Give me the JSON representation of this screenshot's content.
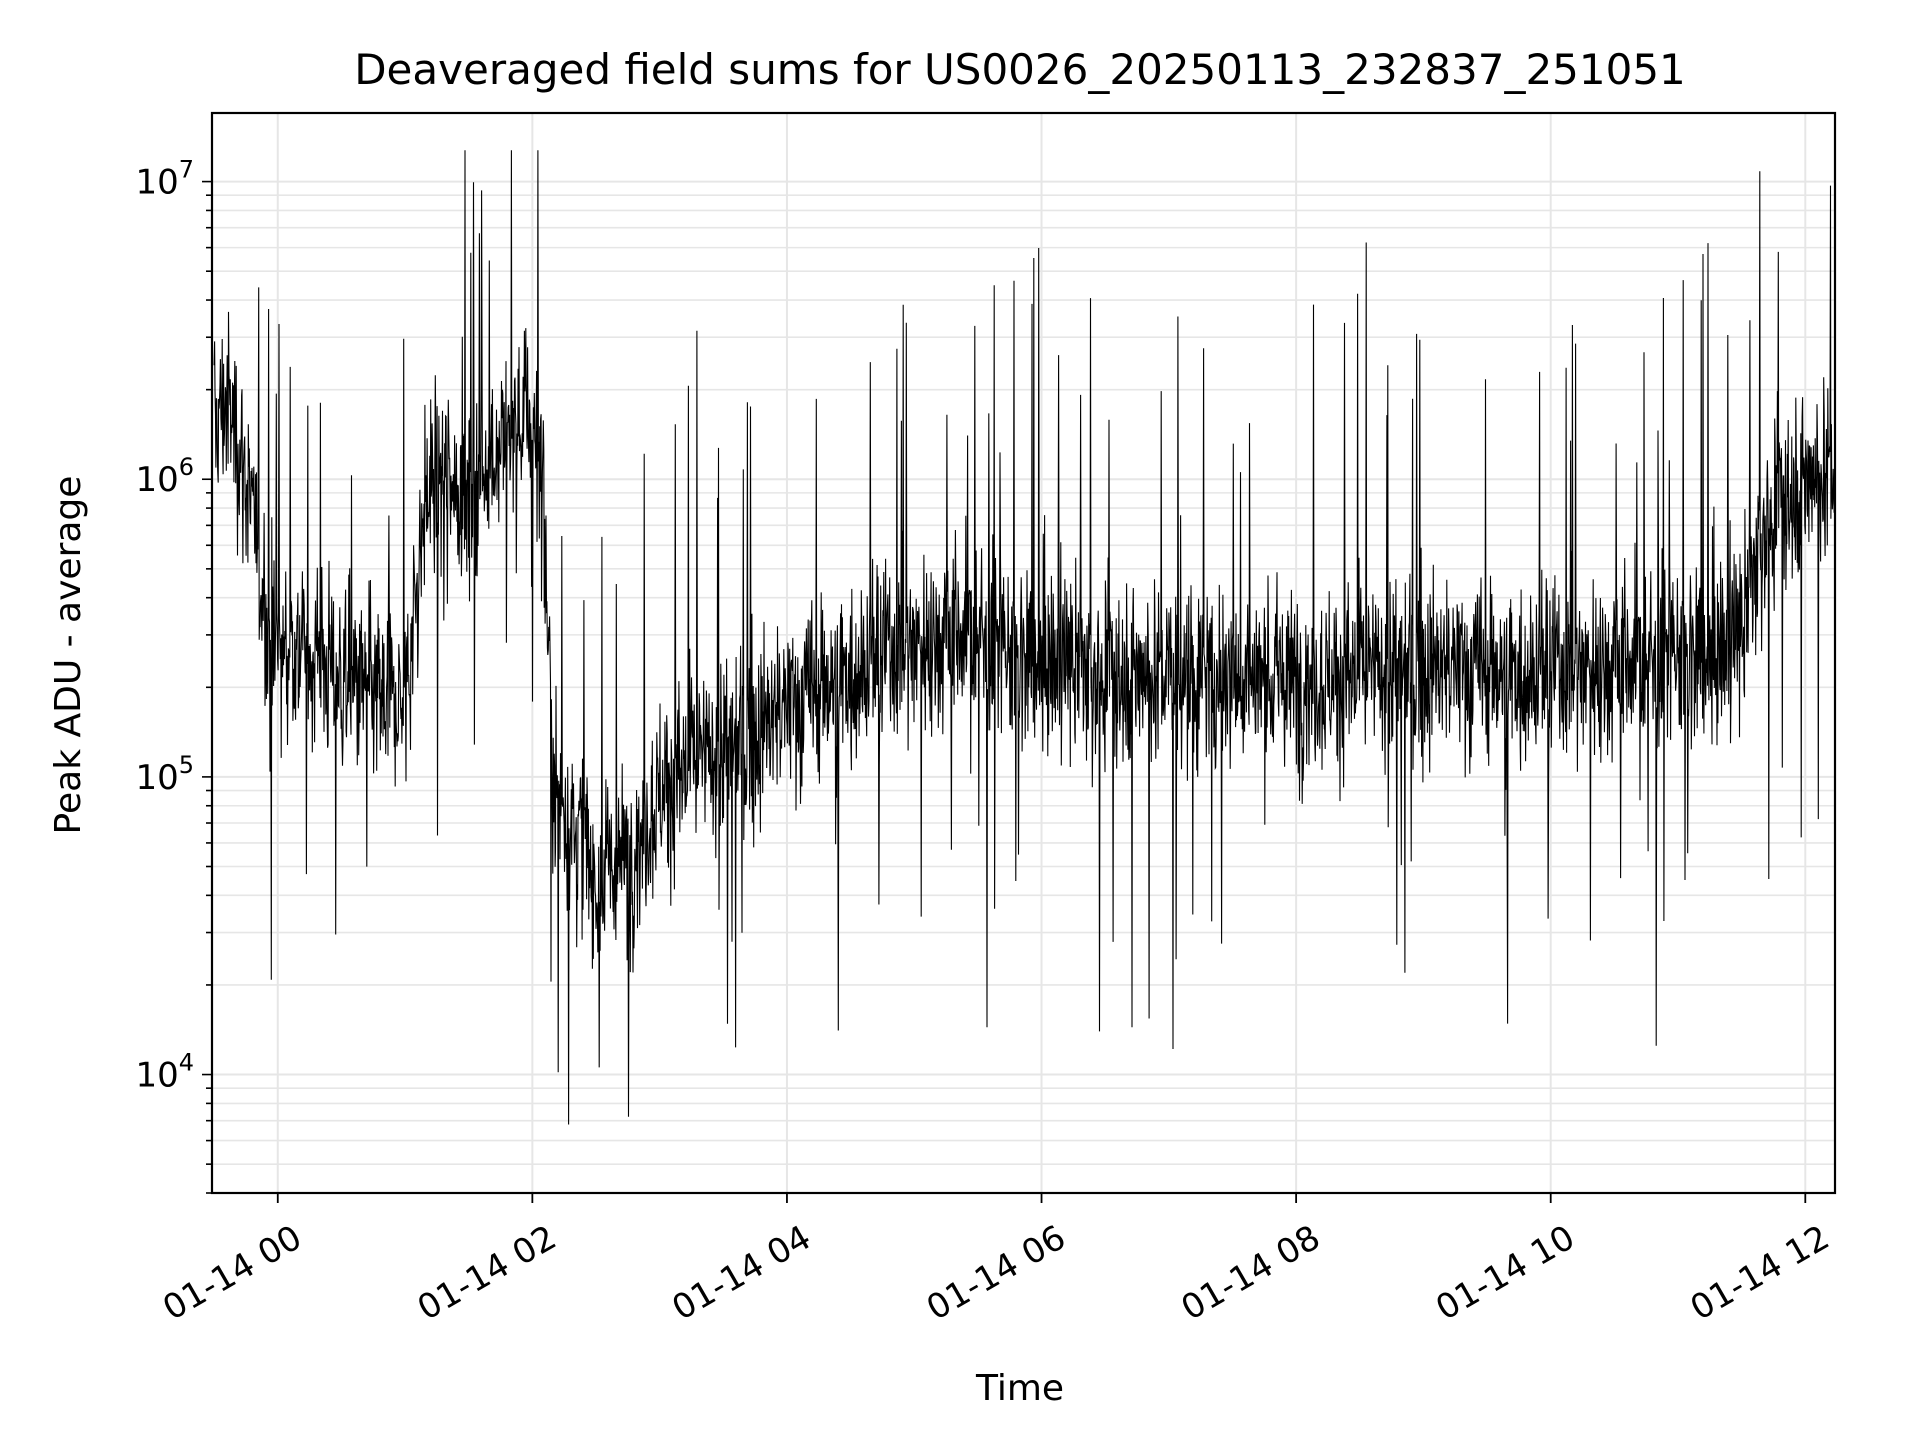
{
  "chart_data": {
    "type": "line",
    "title": "Deaveraged field sums for US0026_20250113_232837_251051",
    "xlabel": "Time",
    "ylabel": "Peak ADU - average",
    "yscale": "log",
    "ylim": [
      4000,
      17000000
    ],
    "xlim": [
      "2025-01-13 23:29",
      "2025-01-14 12:14"
    ],
    "grid": true,
    "line_color": "#000000",
    "x_ticks": [
      {
        "t": "2025-01-14 00:00",
        "label": "01-14 00"
      },
      {
        "t": "2025-01-14 02:00",
        "label": "01-14 02"
      },
      {
        "t": "2025-01-14 04:00",
        "label": "01-14 04"
      },
      {
        "t": "2025-01-14 06:00",
        "label": "01-14 06"
      },
      {
        "t": "2025-01-14 08:00",
        "label": "01-14 08"
      },
      {
        "t": "2025-01-14 10:00",
        "label": "01-14 10"
      },
      {
        "t": "2025-01-14 12:00",
        "label": "01-14 12"
      }
    ],
    "y_ticks": [
      {
        "v": 10000,
        "base": "10",
        "exp": "4"
      },
      {
        "v": 100000,
        "base": "10",
        "exp": "5"
      },
      {
        "v": 1000000,
        "base": "10",
        "exp": "6"
      },
      {
        "v": 10000000,
        "base": "10",
        "exp": "7"
      }
    ],
    "series": [
      {
        "x": [
          "2025-01-13 23:30",
          "2025-01-13 23:35",
          "2025-01-13 23:40",
          "2025-01-13 23:45",
          "2025-01-13 23:50",
          "2025-01-13 23:55",
          "2025-01-14 00:00",
          "2025-01-14 00:10",
          "2025-01-14 00:20",
          "2025-01-14 00:30",
          "2025-01-14 00:40",
          "2025-01-14 00:50",
          "2025-01-14 01:00",
          "2025-01-14 01:10",
          "2025-01-14 01:20",
          "2025-01-14 01:30",
          "2025-01-14 01:40",
          "2025-01-14 01:50",
          "2025-01-14 02:00",
          "2025-01-14 02:05",
          "2025-01-14 02:10",
          "2025-01-14 02:20",
          "2025-01-14 02:30",
          "2025-01-14 02:40",
          "2025-01-14 02:50",
          "2025-01-14 03:00",
          "2025-01-14 03:15",
          "2025-01-14 03:30",
          "2025-01-14 03:45",
          "2025-01-14 04:00",
          "2025-01-14 04:15",
          "2025-01-14 04:30",
          "2025-01-14 04:45",
          "2025-01-14 05:00",
          "2025-01-14 05:15",
          "2025-01-14 05:30",
          "2025-01-14 05:45",
          "2025-01-14 06:00",
          "2025-01-14 06:30",
          "2025-01-14 07:00",
          "2025-01-14 07:30",
          "2025-01-14 08:00",
          "2025-01-14 08:30",
          "2025-01-14 09:00",
          "2025-01-14 09:30",
          "2025-01-14 10:00",
          "2025-01-14 10:30",
          "2025-01-14 11:00",
          "2025-01-14 11:15",
          "2025-01-14 11:30",
          "2025-01-14 11:40",
          "2025-01-14 11:50",
          "2025-01-14 12:00",
          "2025-01-14 12:14"
        ],
        "y": [
          1500000,
          1800000,
          1500000,
          1000000,
          600000,
          300000,
          250000,
          280000,
          260000,
          200000,
          200000,
          180000,
          180000,
          900000,
          1100000,
          800000,
          1200000,
          1500000,
          1700000,
          1000000,
          90000,
          70000,
          45000,
          50000,
          60000,
          90000,
          110000,
          120000,
          140000,
          170000,
          200000,
          230000,
          260000,
          280000,
          300000,
          300000,
          250000,
          240000,
          230000,
          220000,
          220000,
          210000,
          220000,
          230000,
          230000,
          230000,
          240000,
          250000,
          250000,
          300000,
          700000,
          900000,
          1000000,
          1100000
        ],
        "noise_dex": 0.22,
        "spike_fraction": 0.02
      }
    ]
  }
}
